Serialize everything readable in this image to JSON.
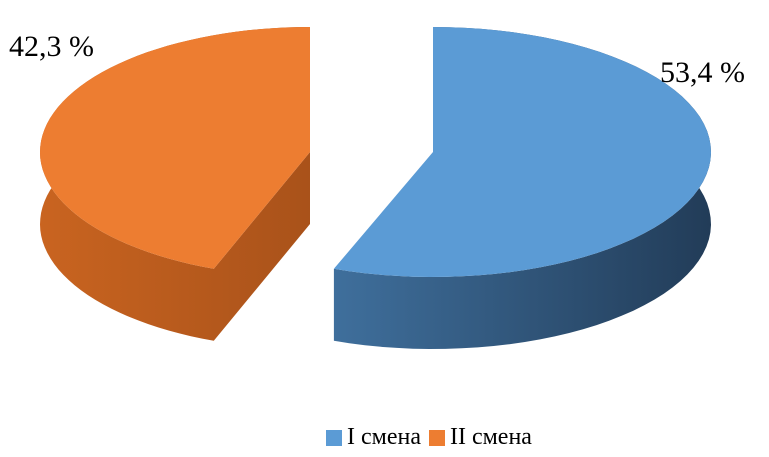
{
  "chart_data": {
    "type": "pie",
    "title": "",
    "categories": [
      "I смена",
      "II смена"
    ],
    "values": [
      53.4,
      42.3
    ],
    "value_labels": [
      "53,4 %",
      "42,3 %"
    ],
    "colors": [
      "#5B9BD5",
      "#ED7D31"
    ],
    "style": "3d-exploded",
    "legend_position": "bottom"
  }
}
